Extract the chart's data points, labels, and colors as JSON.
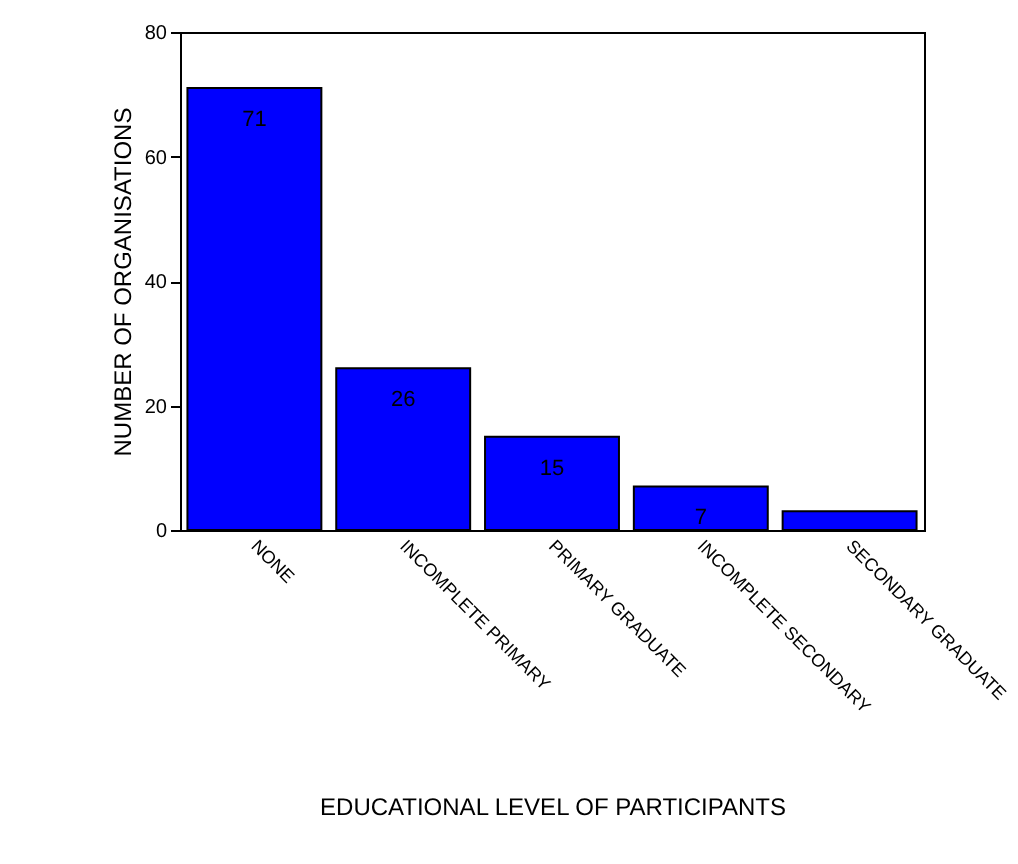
{
  "chart_data": {
    "type": "bar",
    "xlabel": "EDUCATIONAL LEVEL OF PARTICIPANTS",
    "ylabel": "NUMBER OF ORGANISATIONS",
    "categories": [
      "NONE",
      "INCOMPLETE PRIMARY",
      "PRIMARY GRADUATE",
      "INCOMPLETE SECONDARY",
      "SECONDARY GRADUATE"
    ],
    "values": [
      71,
      26,
      15,
      7,
      3
    ],
    "value_labels": [
      "71",
      "26",
      "15",
      "7",
      null
    ],
    "color": "#0000ff",
    "ylim": [
      0,
      80
    ],
    "yticks": [
      0,
      20,
      40,
      60,
      80
    ],
    "grid": false
  }
}
